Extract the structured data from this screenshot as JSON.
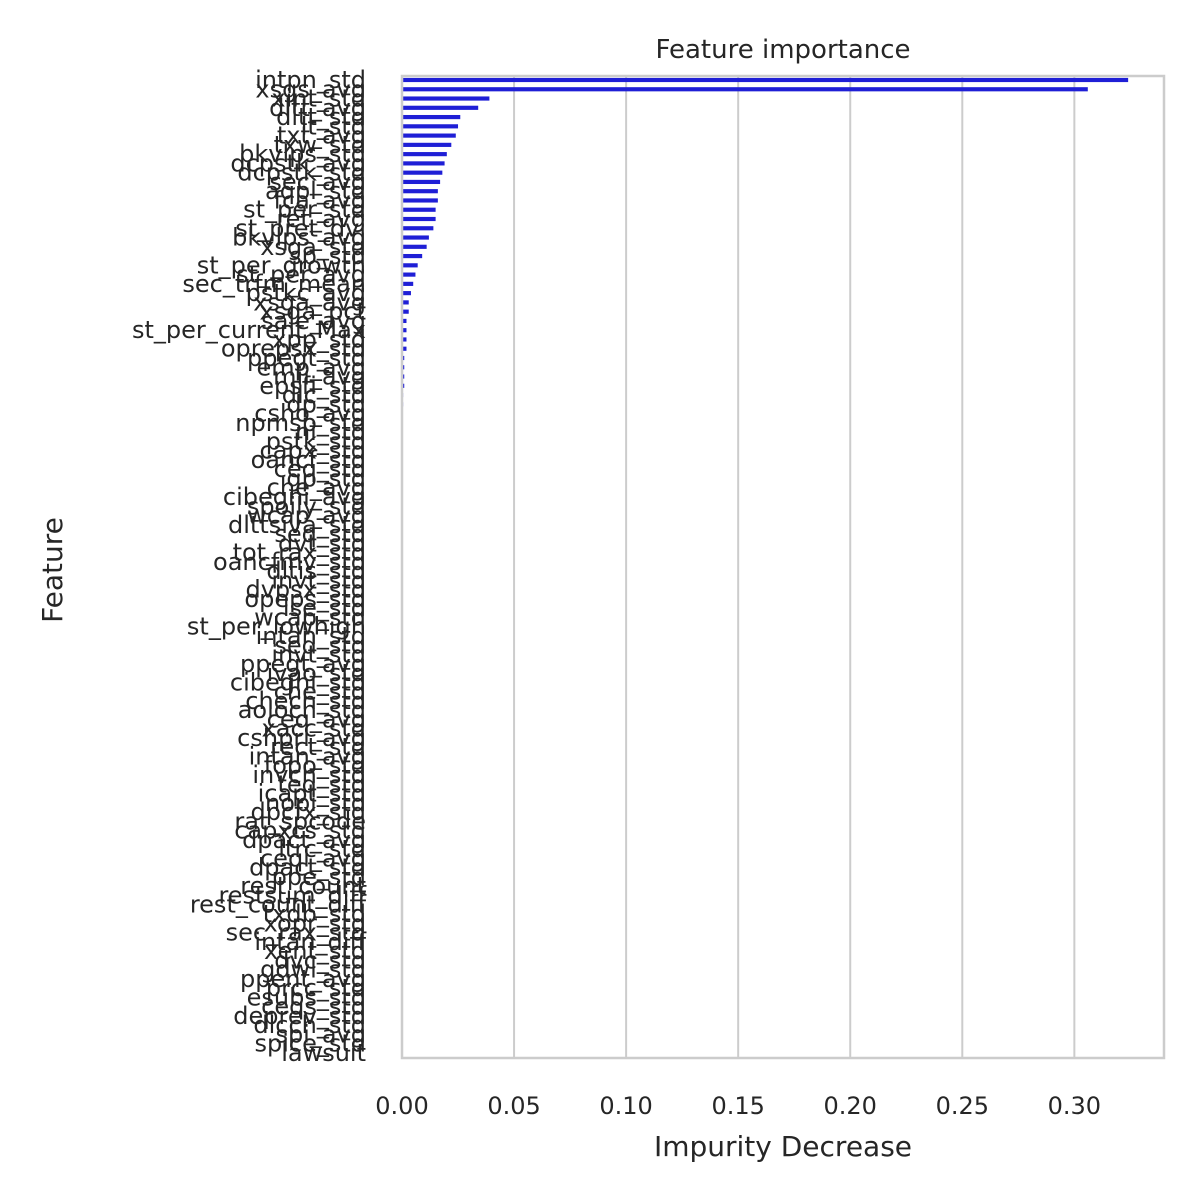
{
  "chart_data": {
    "type": "bar",
    "orientation": "horizontal",
    "title": "Feature importance",
    "xlabel": "Impurity Decrease",
    "ylabel": "Feature",
    "xlim": [
      0,
      0.34
    ],
    "xticks": [
      "0.00",
      "0.05",
      "0.10",
      "0.15",
      "0.20",
      "0.25",
      "0.30"
    ],
    "grid": "vertical",
    "bar_color": "#1f1fd6",
    "categories": [
      "intpn_std",
      "xsgs_avg",
      "xint_std",
      "dltt_avg",
      "dltt_std",
      "lt_std",
      "txt_avg",
      "txw_std",
      "bkvlps_std",
      "dcpstk_avg",
      "dcpstk_std",
      "sec_avg",
      "aqpl_std",
      "fca_avg",
      "st_per_std",
      "ret_avg",
      "st_pret_dvi",
      "bkvlps_avg",
      "xsga_std",
      "sp_std",
      "st_per_growth",
      "st_per_avg",
      "sec_trfm_mean",
      "pstkc_avg",
      "xsga_avg",
      "xsga_pct",
      "sale_avg",
      "st_per_current_Max",
      "xpp_std",
      "oprepsx_std",
      "ppegt_std",
      "emp_avg",
      "mii_avg",
      "epsfi_std",
      "dlc_std",
      "dp_std",
      "csho_avg",
      "npmsp_std",
      "ni_std",
      "pstk_std",
      "capx_std",
      "oancf_std",
      "ceq_std",
      "gp_std",
      "che_avg",
      "cibegni_avg",
      "spoily_std",
      "wcap_avg",
      "dlttsiva_std",
      "seq_std",
      "dvt_std",
      "tot_rax_std",
      "oancfmv_std",
      "dltis_std",
      "invt_std",
      "dvpsx_std",
      "opeps_std",
      "lse_std",
      "wcap_std",
      "st_per_lowhigh",
      "intan_std",
      "sed_std",
      "invt_std",
      "ppegt_avg",
      "ivao_std",
      "cibegni_std",
      "che_std",
      "chech_std",
      "aoloch_std",
      "ceq_avg",
      "xacc_std",
      "cshpri_avg",
      "rect_std",
      "intan_avg",
      "fopo_std",
      "invch_std",
      "teq_std",
      "icapt_std",
      "nopi_std",
      "dpcfx_std",
      "rat_spcode",
      "capxcs_std",
      "dpact_avg",
      "ltrc_std",
      "ceql_avg",
      "dpact_std",
      "ppe_std",
      "rest_count",
      "restsum_diff",
      "rest_count_diff",
      "txdb_std",
      "xopr_std",
      "sec_rax_std",
      "intan_diff",
      "xent_std",
      "dvc_std",
      "gdwl_std",
      "ppent_avg",
      "prcc_std",
      "esubs_std",
      "ceqs_std",
      "deprev_std",
      "dlcch_std",
      "spi_avg",
      "spice_std",
      "lawsuit"
    ],
    "values": [
      0.324,
      0.306,
      0.039,
      0.034,
      0.026,
      0.025,
      0.024,
      0.022,
      0.02,
      0.019,
      0.018,
      0.017,
      0.016,
      0.016,
      0.015,
      0.015,
      0.014,
      0.012,
      0.011,
      0.009,
      0.007,
      0.006,
      0.005,
      0.004,
      0.003,
      0.003,
      0.002,
      0.002,
      0.002,
      0.002,
      0.001,
      0.001,
      0.001,
      0.001,
      0.0005,
      0.0005,
      0.0004,
      0.0004,
      0.0003,
      0.0003,
      0.0003,
      0.0002,
      0.0002,
      0.0002,
      0.0002,
      0.0001,
      0.0001,
      0.0001,
      0.0001,
      0.0001,
      0.0001,
      0,
      0,
      0,
      0,
      0,
      0,
      0,
      0,
      0,
      0,
      0,
      0,
      0,
      0,
      0,
      0,
      0,
      0,
      0,
      0,
      0,
      0,
      0,
      0,
      0,
      0,
      0,
      0,
      0,
      0,
      0,
      0,
      0,
      0,
      0,
      0,
      0,
      0,
      0,
      0,
      0,
      0,
      0,
      0,
      0,
      0,
      0,
      0,
      0,
      0,
      0,
      0,
      0,
      0,
      0
    ]
  }
}
